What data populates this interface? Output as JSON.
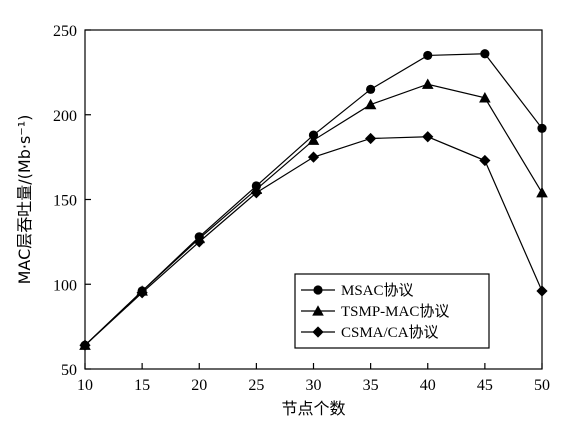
{
  "chart_data": {
    "type": "line",
    "xlabel": "节点个数",
    "ylabel": "MAC层吞吐量/(Mb·s⁻¹)",
    "x": [
      10,
      15,
      20,
      25,
      30,
      35,
      40,
      45,
      50
    ],
    "xlim": [
      10,
      50
    ],
    "ylim": [
      50,
      250
    ],
    "xticks": [
      10,
      15,
      20,
      25,
      30,
      35,
      40,
      45,
      50
    ],
    "yticks": [
      50,
      100,
      150,
      200,
      250
    ],
    "grid": false,
    "legend_position": "bottom-right",
    "series": [
      {
        "name": "MSAC协议",
        "marker": "circle",
        "values": [
          64,
          96,
          128,
          158,
          188,
          215,
          235,
          236,
          192
        ]
      },
      {
        "name": "TSMP-MAC协议",
        "marker": "triangle",
        "values": [
          64,
          96,
          127,
          156,
          185,
          206,
          218,
          210,
          154
        ]
      },
      {
        "name": "CSMA/CA协议",
        "marker": "diamond",
        "values": [
          64,
          95,
          125,
          154,
          175,
          186,
          187,
          173,
          96
        ]
      }
    ]
  }
}
